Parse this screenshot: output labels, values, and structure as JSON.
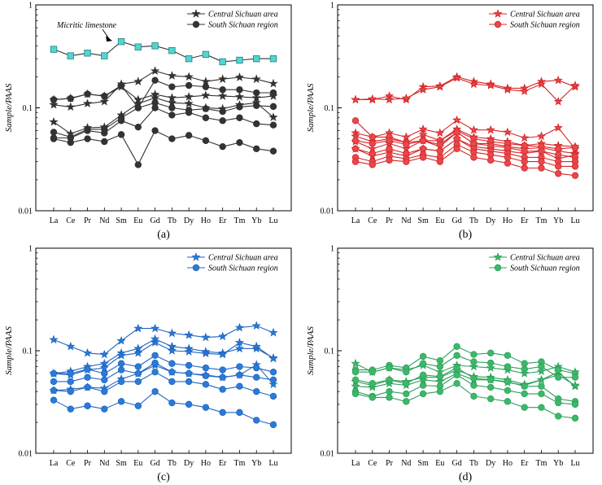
{
  "figure": {
    "captions": [
      "(a)",
      "(b)",
      "(c)",
      "(d)"
    ]
  },
  "chart_data": [
    {
      "type": "line",
      "panel": "a",
      "caption": "(a)",
      "color": "#333333",
      "ylabel": "Sample/PAAS",
      "yscale": "log",
      "ylim": [
        0.01,
        1
      ],
      "yticks": [
        "1",
        "0.1",
        "0.01"
      ],
      "categories": [
        "La",
        "Ce",
        "Pr",
        "Nd",
        "Sm",
        "Eu",
        "Gd",
        "Tb",
        "Dy",
        "Ho",
        "Er",
        "Tm",
        "Yb",
        "Lu"
      ],
      "legend": {
        "central": "Central Sichuan area",
        "south": "South Sichuan region"
      },
      "annotation": "Micritic limestone",
      "special_series": {
        "name": "Micritic limestone",
        "color": "#4fd6d2",
        "marker": "square",
        "values": [
          0.37,
          0.32,
          0.34,
          0.32,
          0.44,
          0.39,
          0.4,
          0.36,
          0.3,
          0.33,
          0.28,
          0.29,
          0.3,
          0.3
        ]
      },
      "series": [
        {
          "group": "central",
          "marker": "star",
          "values": [
            0.107,
            0.102,
            0.11,
            0.115,
            0.17,
            0.18,
            0.228,
            0.205,
            0.2,
            0.18,
            0.19,
            0.198,
            0.19,
            0.172
          ]
        },
        {
          "group": "central",
          "marker": "star",
          "values": [
            0.12,
            0.124,
            0.136,
            0.13,
            0.16,
            0.12,
            0.135,
            0.125,
            0.128,
            0.132,
            0.13,
            0.128,
            0.125,
            0.13
          ]
        },
        {
          "group": "central",
          "marker": "star",
          "values": [
            0.073,
            0.056,
            0.064,
            0.065,
            0.085,
            0.11,
            0.125,
            0.112,
            0.11,
            0.1,
            0.098,
            0.107,
            0.112,
            0.081
          ]
        },
        {
          "group": "south",
          "marker": "circle",
          "values": [
            0.12,
            0.123,
            0.136,
            0.13,
            0.165,
            0.1,
            0.185,
            0.16,
            0.165,
            0.16,
            0.15,
            0.15,
            0.14,
            0.14
          ]
        },
        {
          "group": "south",
          "marker": "circle",
          "values": [
            0.058,
            0.052,
            0.062,
            0.062,
            0.08,
            0.1,
            0.112,
            0.1,
            0.095,
            0.098,
            0.092,
            0.102,
            0.105,
            0.103
          ]
        },
        {
          "group": "south",
          "marker": "circle",
          "values": [
            0.051,
            0.051,
            0.06,
            0.057,
            0.075,
            0.065,
            0.1,
            0.085,
            0.09,
            0.08,
            0.075,
            0.08,
            0.07,
            0.068
          ]
        },
        {
          "group": "south",
          "marker": "circle",
          "values": [
            0.05,
            0.046,
            0.05,
            0.047,
            0.055,
            0.028,
            0.06,
            0.05,
            0.054,
            0.048,
            0.042,
            0.046,
            0.04,
            0.038
          ]
        }
      ]
    },
    {
      "type": "line",
      "panel": "b",
      "caption": "(b)",
      "color": "#d62728",
      "ylabel": "Sample/PAAS",
      "yscale": "log",
      "ylim": [
        0.01,
        1
      ],
      "yticks": [
        "1",
        "0.1",
        "0.01"
      ],
      "categories": [
        "La",
        "Ce",
        "Pr",
        "Nd",
        "Sm",
        "Eu",
        "Gd",
        "Tb",
        "Dy",
        "Ho",
        "Er",
        "Tm",
        "Yb",
        "Lu"
      ],
      "legend": {
        "central": "Central Sichuan area",
        "south": "South Sichuan region"
      },
      "series": [
        {
          "group": "central",
          "marker": "star",
          "values": [
            0.12,
            0.12,
            0.13,
            0.12,
            0.16,
            0.163,
            0.2,
            0.18,
            0.17,
            0.155,
            0.155,
            0.18,
            0.185,
            0.16
          ]
        },
        {
          "group": "central",
          "marker": "star",
          "values": [
            0.12,
            0.122,
            0.12,
            0.124,
            0.15,
            0.16,
            0.195,
            0.17,
            0.165,
            0.15,
            0.145,
            0.17,
            0.115,
            0.165
          ]
        },
        {
          "group": "central",
          "marker": "star",
          "values": [
            0.057,
            0.052,
            0.057,
            0.052,
            0.062,
            0.057,
            0.076,
            0.061,
            0.061,
            0.058,
            0.051,
            0.053,
            0.064,
            0.04
          ]
        },
        {
          "group": "central",
          "marker": "star",
          "values": [
            0.053,
            0.047,
            0.05,
            0.046,
            0.055,
            0.048,
            0.062,
            0.052,
            0.05,
            0.047,
            0.043,
            0.045,
            0.043,
            0.042
          ]
        },
        {
          "group": "central",
          "marker": "star",
          "values": [
            0.047,
            0.04,
            0.045,
            0.04,
            0.048,
            0.042,
            0.058,
            0.045,
            0.045,
            0.042,
            0.04,
            0.041,
            0.038,
            0.036
          ]
        },
        {
          "group": "central",
          "marker": "star",
          "values": [
            0.04,
            0.034,
            0.037,
            0.034,
            0.04,
            0.038,
            0.05,
            0.042,
            0.04,
            0.038,
            0.036,
            0.038,
            0.032,
            0.035
          ]
        },
        {
          "group": "south",
          "marker": "circle",
          "values": [
            0.075,
            0.052,
            0.052,
            0.046,
            0.048,
            0.048,
            0.06,
            0.05,
            0.047,
            0.045,
            0.043,
            0.042,
            0.04,
            0.041
          ]
        },
        {
          "group": "south",
          "marker": "circle",
          "values": [
            0.048,
            0.045,
            0.048,
            0.044,
            0.048,
            0.044,
            0.058,
            0.045,
            0.043,
            0.041,
            0.038,
            0.038,
            0.035,
            0.033
          ]
        },
        {
          "group": "south",
          "marker": "circle",
          "values": [
            0.04,
            0.036,
            0.04,
            0.036,
            0.04,
            0.038,
            0.05,
            0.04,
            0.038,
            0.036,
            0.033,
            0.033,
            0.03,
            0.03
          ]
        },
        {
          "group": "south",
          "marker": "circle",
          "values": [
            0.033,
            0.03,
            0.034,
            0.032,
            0.035,
            0.033,
            0.044,
            0.037,
            0.035,
            0.033,
            0.03,
            0.03,
            0.027,
            0.027
          ]
        },
        {
          "group": "south",
          "marker": "circle",
          "values": [
            0.03,
            0.028,
            0.031,
            0.03,
            0.033,
            0.03,
            0.04,
            0.033,
            0.031,
            0.029,
            0.026,
            0.026,
            0.023,
            0.022
          ]
        }
      ]
    },
    {
      "type": "line",
      "panel": "c",
      "caption": "(c)",
      "color": "#1f66c2",
      "ylabel": "Sample/PAAS",
      "yscale": "log",
      "ylim": [
        0.01,
        1
      ],
      "yticks": [
        "1",
        "0.1",
        "0.01"
      ],
      "categories": [
        "La",
        "Ce",
        "Pr",
        "Nd",
        "Sm",
        "Eu",
        "Gd",
        "Tb",
        "Dy",
        "Ho",
        "Er",
        "Tm",
        "Yb",
        "Lu"
      ],
      "legend": {
        "central": "Central Sichuan area",
        "south": "South Sichuan region"
      },
      "series": [
        {
          "group": "central",
          "marker": "star",
          "values": [
            0.128,
            0.11,
            0.095,
            0.092,
            0.125,
            0.165,
            0.165,
            0.148,
            0.142,
            0.135,
            0.138,
            0.168,
            0.175,
            0.15
          ]
        },
        {
          "group": "central",
          "marker": "star",
          "values": [
            0.06,
            0.063,
            0.07,
            0.075,
            0.095,
            0.105,
            0.13,
            0.11,
            0.105,
            0.098,
            0.095,
            0.105,
            0.105,
            0.085
          ]
        },
        {
          "group": "central",
          "marker": "star",
          "values": [
            0.06,
            0.058,
            0.065,
            0.068,
            0.09,
            0.095,
            0.12,
            0.1,
            0.098,
            0.094,
            0.092,
            0.12,
            0.11,
            0.084
          ]
        },
        {
          "group": "central",
          "marker": "star",
          "values": [
            0.041,
            0.042,
            0.044,
            0.043,
            0.053,
            0.06,
            0.072,
            0.062,
            0.06,
            0.058,
            0.055,
            0.058,
            0.073,
            0.047
          ]
        },
        {
          "group": "south",
          "marker": "circle",
          "values": [
            0.06,
            0.06,
            0.066,
            0.06,
            0.075,
            0.07,
            0.09,
            0.075,
            0.072,
            0.068,
            0.065,
            0.07,
            0.068,
            0.062
          ]
        },
        {
          "group": "south",
          "marker": "circle",
          "values": [
            0.05,
            0.05,
            0.055,
            0.052,
            0.065,
            0.06,
            0.076,
            0.062,
            0.06,
            0.057,
            0.055,
            0.058,
            0.055,
            0.052
          ]
        },
        {
          "group": "south",
          "marker": "circle",
          "values": [
            0.041,
            0.04,
            0.044,
            0.04,
            0.05,
            0.05,
            0.062,
            0.05,
            0.05,
            0.047,
            0.042,
            0.045,
            0.04,
            0.036
          ]
        },
        {
          "group": "south",
          "marker": "circle",
          "values": [
            0.033,
            0.027,
            0.029,
            0.027,
            0.032,
            0.029,
            0.04,
            0.031,
            0.03,
            0.028,
            0.025,
            0.025,
            0.021,
            0.019
          ]
        }
      ]
    },
    {
      "type": "line",
      "panel": "d",
      "caption": "(d)",
      "color": "#2ca05a",
      "ylabel": "Sample/PAAS",
      "yscale": "log",
      "ylim": [
        0.01,
        1
      ],
      "yticks": [
        "1",
        "0.1",
        "0.01"
      ],
      "categories": [
        "La",
        "Ce",
        "Pr",
        "Nd",
        "Sm",
        "Eu",
        "Gd",
        "Tb",
        "Dy",
        "Ho",
        "Er",
        "Tm",
        "Yb",
        "Lu"
      ],
      "legend": {
        "central": "Central Sichuan area",
        "south": "South Sichuan region"
      },
      "series": [
        {
          "group": "central",
          "marker": "star",
          "values": [
            0.075,
            0.062,
            0.068,
            0.065,
            0.072,
            0.062,
            0.072,
            0.07,
            0.068,
            0.065,
            0.06,
            0.063,
            0.07,
            0.062
          ]
        },
        {
          "group": "central",
          "marker": "star",
          "values": [
            0.05,
            0.046,
            0.052,
            0.05,
            0.055,
            0.055,
            0.065,
            0.056,
            0.055,
            0.052,
            0.047,
            0.052,
            0.062,
            0.045
          ]
        },
        {
          "group": "central",
          "marker": "star",
          "values": [
            0.045,
            0.044,
            0.048,
            0.046,
            0.052,
            0.05,
            0.06,
            0.052,
            0.052,
            0.049,
            0.046,
            0.052,
            0.058,
            0.046
          ]
        },
        {
          "group": "south",
          "marker": "circle",
          "values": [
            0.065,
            0.065,
            0.072,
            0.068,
            0.088,
            0.08,
            0.11,
            0.092,
            0.095,
            0.09,
            0.075,
            0.078,
            0.065,
            0.06
          ]
        },
        {
          "group": "south",
          "marker": "circle",
          "values": [
            0.062,
            0.062,
            0.068,
            0.062,
            0.075,
            0.07,
            0.09,
            0.078,
            0.076,
            0.07,
            0.066,
            0.07,
            0.055,
            0.055
          ]
        },
        {
          "group": "south",
          "marker": "circle",
          "values": [
            0.052,
            0.048,
            0.052,
            0.048,
            0.058,
            0.056,
            0.068,
            0.054,
            0.052,
            0.05,
            0.045,
            0.045,
            0.034,
            0.032
          ]
        },
        {
          "group": "south",
          "marker": "circle",
          "values": [
            0.04,
            0.036,
            0.04,
            0.038,
            0.046,
            0.045,
            0.058,
            0.046,
            0.044,
            0.041,
            0.038,
            0.038,
            0.031,
            0.03
          ]
        },
        {
          "group": "south",
          "marker": "circle",
          "values": [
            0.038,
            0.035,
            0.035,
            0.032,
            0.038,
            0.04,
            0.048,
            0.036,
            0.034,
            0.032,
            0.028,
            0.028,
            0.023,
            0.022
          ]
        }
      ]
    }
  ]
}
